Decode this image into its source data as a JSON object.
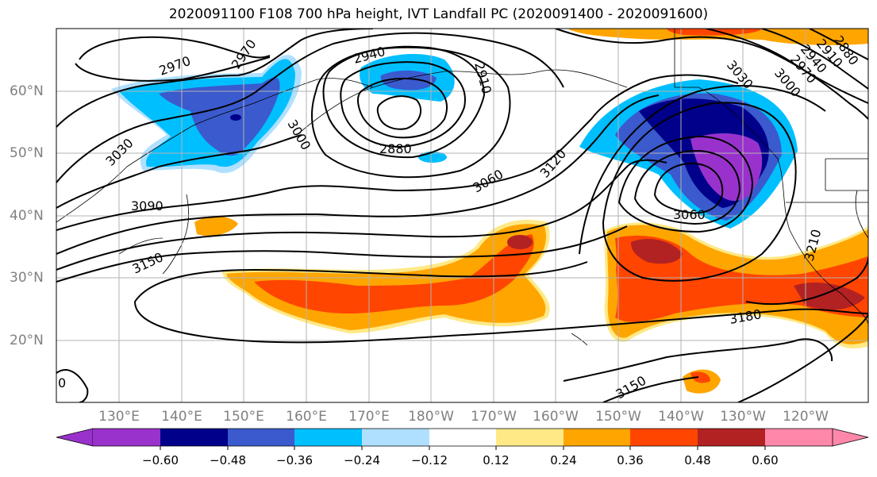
{
  "title": "2020091100 F108 700 hPa height, IVT Landfall PC (2020091400 - 2020091600)",
  "longitude_labels": [
    "130°E",
    "140°E",
    "150°E",
    "160°E",
    "170°E",
    "180°W",
    "170°W",
    "160°W",
    "150°W",
    "140°W",
    "130°W",
    "120°W"
  ],
  "latitude_labels": [
    "60°N",
    "50°N",
    "40°N",
    "30°N",
    "20°N"
  ],
  "contour_labels": [
    "2970",
    "2970",
    "2940",
    "2910",
    "2880",
    "3030",
    "3000",
    "3060",
    "3120",
    "3090",
    "3150",
    "3060",
    "3180",
    "3150",
    "3030",
    "3000",
    "2970",
    "2940",
    "2910",
    "2880",
    "3210",
    "0"
  ],
  "colorbar": {
    "tick_labels": [
      "−0.60",
      "−0.48",
      "−0.36",
      "−0.24",
      "−0.12",
      "0.12",
      "0.24",
      "0.36",
      "0.48",
      "0.60"
    ],
    "colors": [
      "#9932cc",
      "#00008b",
      "#3a5acd",
      "#00bfff",
      "#b0e0ff",
      "#ffffff",
      "#ffe987",
      "#ffa500",
      "#ff4500",
      "#b22222",
      "#ff88aa"
    ]
  },
  "colors": {
    "neg_strong": "#9932cc",
    "neg_2": "#00008b",
    "neg_3": "#3a5acd",
    "neg_4": "#00bfff",
    "neg_5": "#b0e0ff",
    "pos_1": "#ffe987",
    "pos_2": "#ffa500",
    "pos_3": "#ff4500",
    "pos_4": "#b22222"
  }
}
